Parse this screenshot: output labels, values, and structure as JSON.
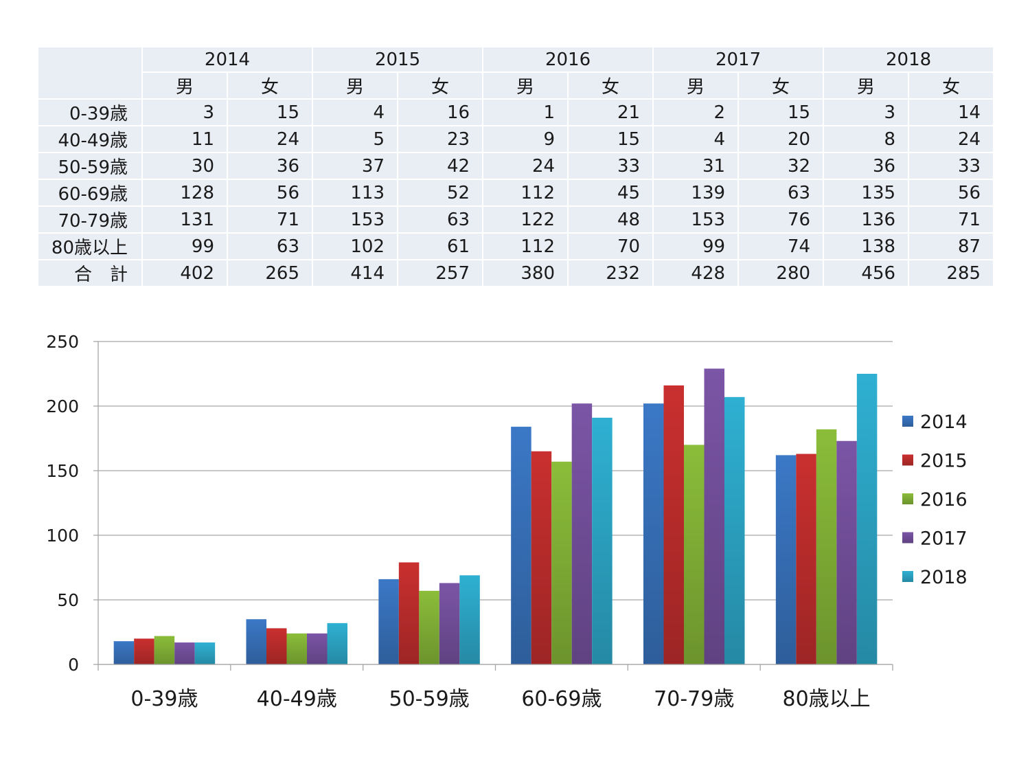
{
  "table": {
    "years": [
      "2014",
      "2015",
      "2016",
      "2017",
      "2018"
    ],
    "sexes": [
      "男",
      "女"
    ],
    "rows": [
      {
        "label": "0-39歳",
        "values": [
          3,
          15,
          4,
          16,
          1,
          21,
          2,
          15,
          3,
          14
        ]
      },
      {
        "label": "40-49歳",
        "values": [
          11,
          24,
          5,
          23,
          9,
          15,
          4,
          20,
          8,
          24
        ]
      },
      {
        "label": "50-59歳",
        "values": [
          30,
          36,
          37,
          42,
          24,
          33,
          31,
          32,
          36,
          33
        ]
      },
      {
        "label": "60-69歳",
        "values": [
          128,
          56,
          113,
          52,
          112,
          45,
          139,
          63,
          135,
          56
        ]
      },
      {
        "label": "70-79歳",
        "values": [
          131,
          71,
          153,
          63,
          122,
          48,
          153,
          76,
          136,
          71
        ]
      },
      {
        "label": "80歳以上",
        "values": [
          99,
          63,
          102,
          61,
          112,
          70,
          99,
          74,
          138,
          87
        ]
      },
      {
        "label": "合　計",
        "values": [
          402,
          265,
          414,
          257,
          380,
          232,
          428,
          280,
          456,
          285
        ]
      }
    ]
  },
  "chart_data": {
    "type": "bar",
    "categories": [
      "0-39歳",
      "40-49歳",
      "50-59歳",
      "60-69歳",
      "70-79歳",
      "80歳以上"
    ],
    "series": [
      {
        "name": "2014",
        "values": [
          18,
          35,
          66,
          184,
          202,
          162
        ],
        "color": "#3b78c6"
      },
      {
        "name": "2015",
        "values": [
          20,
          28,
          79,
          165,
          216,
          163
        ],
        "color": "#c9302f"
      },
      {
        "name": "2016",
        "values": [
          22,
          24,
          57,
          157,
          170,
          182
        ],
        "color": "#8bbd3a"
      },
      {
        "name": "2017",
        "values": [
          17,
          24,
          63,
          202,
          229,
          173
        ],
        "color": "#7b55a6"
      },
      {
        "name": "2018",
        "values": [
          17,
          32,
          69,
          191,
          207,
          225
        ],
        "color": "#2fb0d2"
      }
    ],
    "ylim": [
      0,
      250
    ],
    "yticks": [
      0,
      50,
      100,
      150,
      200,
      250
    ],
    "grid": true,
    "legend": "right"
  }
}
